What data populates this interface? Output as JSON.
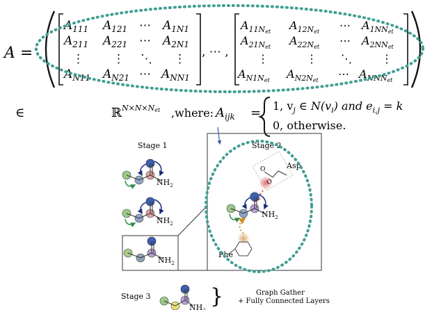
{
  "equation": {
    "lhs": "A =",
    "matrix_first": [
      [
        "A",
        "111",
        "A",
        "121",
        "⋯",
        "A",
        "1N1"
      ],
      [
        "A",
        "211",
        "A",
        "221",
        "⋯",
        "A",
        "2N1"
      ],
      [
        "⋮",
        "",
        "⋮",
        "",
        "⋱",
        "⋮",
        ""
      ],
      [
        "A",
        "N11",
        "A",
        "N21",
        "⋯",
        "A",
        "NN1"
      ]
    ],
    "separator": ", ⋯ ,",
    "matrix_last": [
      [
        "A",
        "11N",
        "A",
        "12N",
        "⋯",
        "A",
        "1NN"
      ],
      [
        "A",
        "21N",
        "A",
        "22N",
        "⋯",
        "A",
        "2NN"
      ],
      [
        "⋮",
        "",
        "⋮",
        "",
        "⋱",
        "⋮",
        ""
      ],
      [
        "A",
        "N1N",
        "A",
        "N2N",
        "⋯",
        "A",
        "NNN"
      ]
    ],
    "subscript_et": "et",
    "element_of": "∈",
    "real_space": "ℝ",
    "real_space_exp": "N×N×N",
    "real_space_exp_sub": "et",
    "where": ",where:",
    "aijk": "A",
    "aijk_sub": "ijk",
    "equals": "=",
    "case1": "1, v",
    "case1_sub_j": "j",
    "case1_mid": " ∈ N(v",
    "case1_sub_i": "i",
    "case1_and": ") and e",
    "case1_sub_ij": "i,j",
    "case1_end": " = k",
    "case2": "0, otherwise."
  },
  "stages": {
    "stage1_label": "Stage 1",
    "stage2_label": "Stage 2",
    "stage3_label": "Stage 3",
    "nh2": "NH",
    "nh2_sub": "2",
    "o_label": "O",
    "asp_label": "Asp",
    "phe_label": "Phe",
    "gather_line1": "Graph Gather",
    "gather_line2": "+ Fully Connected Layers",
    "brace": "}"
  },
  "colors": {
    "teal_dots": "#3f9e92",
    "blue_arrow": "#1a2d7a",
    "green_arrow": "#2d8a4e",
    "red_arrow": "#d9534f",
    "orange_dots": "#c8922e",
    "node_green": "#9cc98a",
    "node_blue": "#8fa3c4",
    "node_red": "#e3a3a3",
    "node_purple": "#b9a0d6",
    "node_navy": "#3f5fb0",
    "node_yellow": "#e8e07a",
    "node_orange": "#e0b27a"
  }
}
